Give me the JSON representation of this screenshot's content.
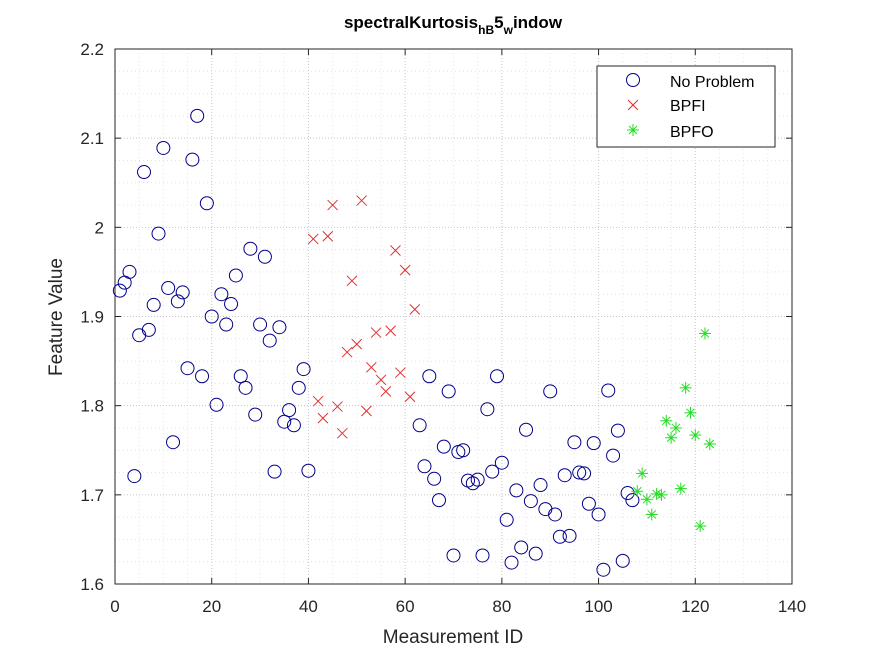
{
  "chart_data": {
    "type": "scatter",
    "title": {
      "base": "spectralKurtosis",
      "sub1": "hB",
      "mid": "5",
      "sub2": "w",
      "tail": "indow"
    },
    "xlabel": "Measurement ID",
    "ylabel": "Feature Value",
    "xlim": [
      0,
      140
    ],
    "ylim": [
      1.6,
      2.2
    ],
    "xticks": [
      0,
      20,
      40,
      60,
      80,
      100,
      120,
      140
    ],
    "yticks": [
      1.6,
      1.7,
      1.8,
      1.9,
      2.0,
      2.1,
      2.2
    ],
    "xtick_labels": [
      "0",
      "20",
      "40",
      "60",
      "80",
      "100",
      "120",
      "140"
    ],
    "ytick_labels": [
      "1.6",
      "1.7",
      "1.8",
      "1.9",
      "2",
      "2.1",
      "2.2"
    ],
    "grid": "major and minor dotted",
    "legend_position": "top-right",
    "series": [
      {
        "name": "No Problem",
        "marker": "circle",
        "color": "#00008b",
        "x": [
          1,
          2,
          3,
          4,
          5,
          6,
          7,
          8,
          9,
          10,
          11,
          12,
          13,
          14,
          15,
          16,
          17,
          18,
          19,
          20,
          21,
          22,
          23,
          24,
          25,
          26,
          27,
          28,
          29,
          30,
          31,
          32,
          33,
          34,
          35,
          36,
          37,
          38,
          39,
          40,
          63,
          64,
          65,
          66,
          67,
          68,
          69,
          70,
          71,
          72,
          73,
          74,
          75,
          76,
          77,
          78,
          79,
          80,
          81,
          82,
          83,
          84,
          85,
          86,
          87,
          88,
          89,
          90,
          91,
          92,
          93,
          94,
          95,
          96,
          97,
          98,
          99,
          100,
          101,
          102,
          103,
          104,
          105,
          106,
          107
        ],
        "y": [
          1.929,
          1.938,
          1.95,
          1.721,
          1.879,
          2.062,
          1.885,
          1.913,
          1.993,
          2.089,
          1.932,
          1.759,
          1.917,
          1.927,
          1.842,
          2.076,
          2.125,
          1.833,
          2.027,
          1.9,
          1.801,
          1.925,
          1.891,
          1.914,
          1.946,
          1.833,
          1.82,
          1.976,
          1.79,
          1.891,
          1.967,
          1.873,
          1.726,
          1.888,
          1.782,
          1.795,
          1.778,
          1.82,
          1.841,
          1.727,
          1.778,
          1.732,
          1.833,
          1.718,
          1.694,
          1.754,
          1.816,
          1.632,
          1.748,
          1.75,
          1.716,
          1.713,
          1.717,
          1.632,
          1.796,
          1.726,
          1.833,
          1.736,
          1.672,
          1.624,
          1.705,
          1.641,
          1.773,
          1.693,
          1.634,
          1.711,
          1.684,
          1.816,
          1.678,
          1.653,
          1.722,
          1.654,
          1.759,
          1.725,
          1.724,
          1.69,
          1.758,
          1.678,
          1.616,
          1.817,
          1.744,
          1.772,
          1.626,
          1.702,
          1.694
        ]
      },
      {
        "name": "BPFI",
        "marker": "x",
        "color": "#e03030",
        "x": [
          41,
          42,
          43,
          44,
          45,
          46,
          47,
          48,
          49,
          50,
          51,
          52,
          53,
          54,
          55,
          56,
          57,
          58,
          59,
          60,
          61,
          62
        ],
        "y": [
          1.987,
          1.805,
          1.786,
          1.99,
          2.025,
          1.799,
          1.769,
          1.86,
          1.94,
          1.869,
          2.03,
          1.794,
          1.843,
          1.882,
          1.829,
          1.816,
          1.884,
          1.974,
          1.837,
          1.952,
          1.81,
          1.908
        ]
      },
      {
        "name": "BPFO",
        "marker": "star",
        "color": "#22dd22",
        "x": [
          108,
          109,
          110,
          111,
          112,
          113,
          114,
          115,
          116,
          117,
          118,
          119,
          120,
          121,
          122,
          123
        ],
        "y": [
          1.704,
          1.724,
          1.695,
          1.678,
          1.701,
          1.7,
          1.783,
          1.764,
          1.775,
          1.707,
          1.82,
          1.792,
          1.767,
          1.665,
          1.881,
          1.757
        ]
      }
    ]
  }
}
